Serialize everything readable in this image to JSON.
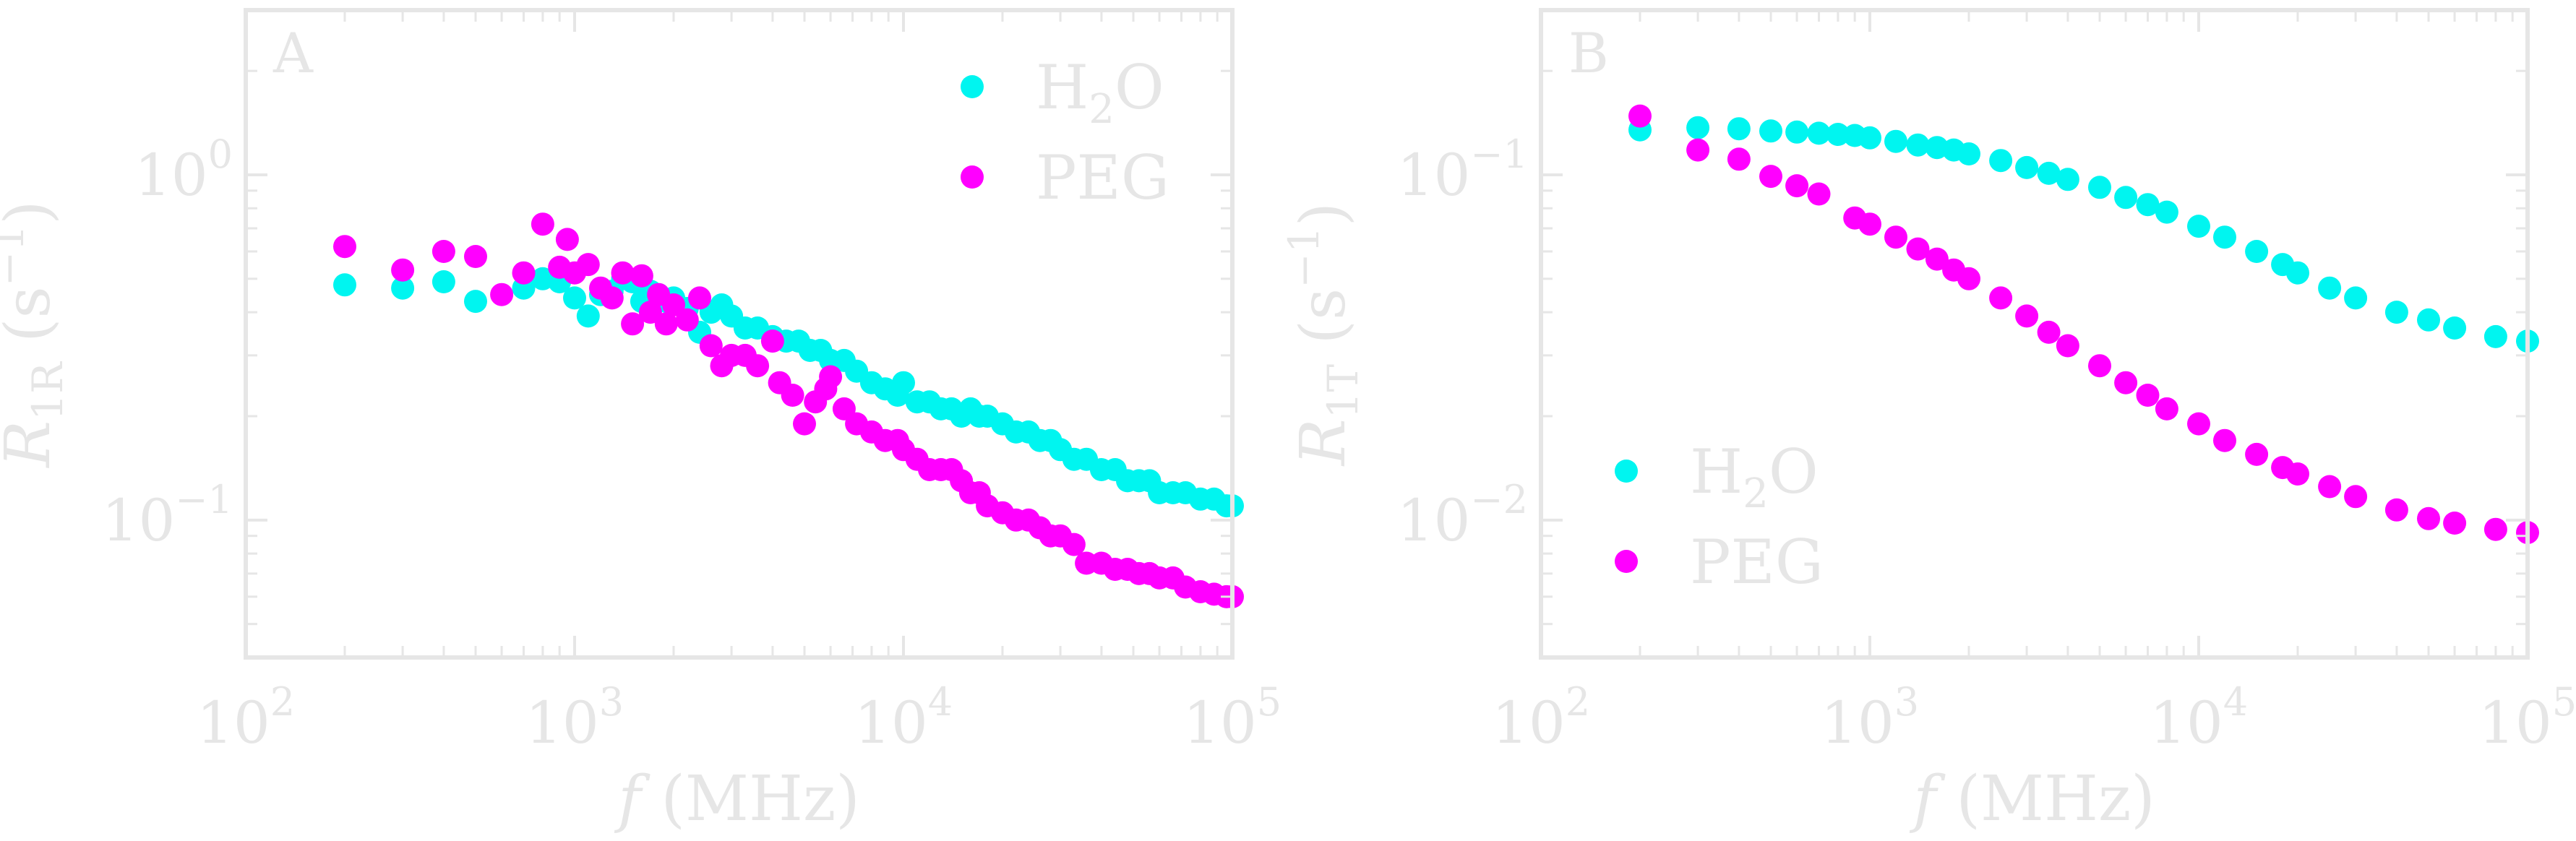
{
  "chart_data": [
    {
      "type": "scatter",
      "panel_label": "A",
      "xlabel": "f (MHz)",
      "ylabel": "R1R (s−1)",
      "xscale": "log",
      "yscale": "log",
      "xlim": [
        100,
        100000
      ],
      "ylim": [
        0.04,
        3.0
      ],
      "x_ticks": [
        100,
        1000,
        10000,
        100000
      ],
      "y_ticks": [
        0.1,
        1
      ],
      "x_tick_labels": [
        {
          "base": "10",
          "exp": "2"
        },
        {
          "base": "10",
          "exp": "3"
        },
        {
          "base": "10",
          "exp": "4"
        },
        {
          "base": "10",
          "exp": "5"
        }
      ],
      "y_tick_labels": [
        {
          "base": "10",
          "exp": "−1"
        },
        {
          "base": "10",
          "exp": "0"
        }
      ],
      "legend_placement": "top-right",
      "series": [
        {
          "name": "H2O",
          "color": "#00f5f0",
          "points": [
            [
              200,
              0.48
            ],
            [
              300,
              0.47
            ],
            [
              400,
              0.49
            ],
            [
              500,
              0.43
            ],
            [
              700,
              0.47
            ],
            [
              800,
              0.5
            ],
            [
              900,
              0.49
            ],
            [
              1000,
              0.44
            ],
            [
              1100,
              0.39
            ],
            [
              1200,
              0.45
            ],
            [
              1300,
              0.46
            ],
            [
              1400,
              0.5
            ],
            [
              1500,
              0.49
            ],
            [
              1600,
              0.43
            ],
            [
              1700,
              0.46
            ],
            [
              1800,
              0.45
            ],
            [
              1900,
              0.43
            ],
            [
              2000,
              0.44
            ],
            [
              2200,
              0.41
            ],
            [
              2400,
              0.35
            ],
            [
              2600,
              0.4
            ],
            [
              2800,
              0.42
            ],
            [
              3000,
              0.39
            ],
            [
              3300,
              0.36
            ],
            [
              3600,
              0.36
            ],
            [
              4000,
              0.34
            ],
            [
              4400,
              0.33
            ],
            [
              4800,
              0.33
            ],
            [
              5200,
              0.31
            ],
            [
              5600,
              0.31
            ],
            [
              6000,
              0.29
            ],
            [
              6600,
              0.29
            ],
            [
              7200,
              0.27
            ],
            [
              8000,
              0.25
            ],
            [
              8800,
              0.24
            ],
            [
              9600,
              0.23
            ],
            [
              10000,
              0.25
            ],
            [
              11000,
              0.22
            ],
            [
              12000,
              0.22
            ],
            [
              13000,
              0.21
            ],
            [
              14000,
              0.21
            ],
            [
              15000,
              0.2
            ],
            [
              16000,
              0.21
            ],
            [
              17000,
              0.2
            ],
            [
              18000,
              0.2
            ],
            [
              20000,
              0.19
            ],
            [
              22000,
              0.18
            ],
            [
              24000,
              0.18
            ],
            [
              26000,
              0.17
            ],
            [
              28000,
              0.17
            ],
            [
              30000,
              0.16
            ],
            [
              33000,
              0.15
            ],
            [
              36000,
              0.15
            ],
            [
              40000,
              0.14
            ],
            [
              44000,
              0.14
            ],
            [
              48000,
              0.13
            ],
            [
              52000,
              0.13
            ],
            [
              56000,
              0.13
            ],
            [
              60000,
              0.12
            ],
            [
              66000,
              0.12
            ],
            [
              72000,
              0.12
            ],
            [
              80000,
              0.115
            ],
            [
              88000,
              0.115
            ],
            [
              96000,
              0.11
            ],
            [
              100000,
              0.11
            ]
          ]
        },
        {
          "name": "PEG",
          "color": "#ff00ff",
          "points": [
            [
              200,
              0.62
            ],
            [
              300,
              0.53
            ],
            [
              400,
              0.6
            ],
            [
              500,
              0.58
            ],
            [
              600,
              0.45
            ],
            [
              700,
              0.52
            ],
            [
              800,
              0.72
            ],
            [
              900,
              0.54
            ],
            [
              950,
              0.65
            ],
            [
              1000,
              0.52
            ],
            [
              1100,
              0.55
            ],
            [
              1200,
              0.47
            ],
            [
              1300,
              0.44
            ],
            [
              1400,
              0.52
            ],
            [
              1500,
              0.37
            ],
            [
              1600,
              0.51
            ],
            [
              1700,
              0.4
            ],
            [
              1800,
              0.45
            ],
            [
              1900,
              0.37
            ],
            [
              2000,
              0.42
            ],
            [
              2200,
              0.38
            ],
            [
              2400,
              0.44
            ],
            [
              2600,
              0.32
            ],
            [
              2800,
              0.28
            ],
            [
              3000,
              0.3
            ],
            [
              3300,
              0.3
            ],
            [
              3600,
              0.28
            ],
            [
              4000,
              0.33
            ],
            [
              4200,
              0.25
            ],
            [
              4600,
              0.23
            ],
            [
              5000,
              0.19
            ],
            [
              5400,
              0.22
            ],
            [
              5800,
              0.24
            ],
            [
              6000,
              0.26
            ],
            [
              6600,
              0.21
            ],
            [
              7200,
              0.19
            ],
            [
              8000,
              0.18
            ],
            [
              8800,
              0.17
            ],
            [
              9600,
              0.17
            ],
            [
              10000,
              0.16
            ],
            [
              11000,
              0.15
            ],
            [
              12000,
              0.14
            ],
            [
              13000,
              0.14
            ],
            [
              14000,
              0.14
            ],
            [
              15000,
              0.13
            ],
            [
              16000,
              0.12
            ],
            [
              17000,
              0.12
            ],
            [
              18000,
              0.11
            ],
            [
              20000,
              0.105
            ],
            [
              22000,
              0.1
            ],
            [
              24000,
              0.1
            ],
            [
              26000,
              0.095
            ],
            [
              28000,
              0.09
            ],
            [
              30000,
              0.09
            ],
            [
              33000,
              0.085
            ],
            [
              36000,
              0.075
            ],
            [
              40000,
              0.075
            ],
            [
              44000,
              0.072
            ],
            [
              48000,
              0.072
            ],
            [
              52000,
              0.07
            ],
            [
              56000,
              0.07
            ],
            [
              60000,
              0.068
            ],
            [
              66000,
              0.068
            ],
            [
              72000,
              0.064
            ],
            [
              80000,
              0.062
            ],
            [
              88000,
              0.061
            ],
            [
              96000,
              0.06
            ],
            [
              100000,
              0.06
            ]
          ]
        }
      ]
    },
    {
      "type": "scatter",
      "panel_label": "B",
      "xlabel": "f (MHz)",
      "ylabel": "R1T (s−1)",
      "xscale": "log",
      "yscale": "log",
      "xlim": [
        100,
        100000
      ],
      "ylim": [
        0.004,
        0.3
      ],
      "x_ticks": [
        100,
        1000,
        10000,
        100000
      ],
      "y_ticks": [
        0.01,
        0.1
      ],
      "x_tick_labels": [
        {
          "base": "10",
          "exp": "2"
        },
        {
          "base": "10",
          "exp": "3"
        },
        {
          "base": "10",
          "exp": "4"
        },
        {
          "base": "10",
          "exp": "5"
        }
      ],
      "y_tick_labels": [
        {
          "base": "10",
          "exp": "−2"
        },
        {
          "base": "10",
          "exp": "−1"
        }
      ],
      "legend_placement": "bottom-left",
      "series": [
        {
          "name": "H2O",
          "color": "#00f5f0",
          "points": [
            [
              200,
              0.135
            ],
            [
              300,
              0.137
            ],
            [
              400,
              0.136
            ],
            [
              500,
              0.134
            ],
            [
              600,
              0.133
            ],
            [
              700,
              0.132
            ],
            [
              800,
              0.131
            ],
            [
              900,
              0.13
            ],
            [
              1000,
              0.128
            ],
            [
              1200,
              0.125
            ],
            [
              1400,
              0.122
            ],
            [
              1600,
              0.12
            ],
            [
              1800,
              0.118
            ],
            [
              2000,
              0.115
            ],
            [
              2500,
              0.11
            ],
            [
              3000,
              0.105
            ],
            [
              3500,
              0.101
            ],
            [
              4000,
              0.097
            ],
            [
              5000,
              0.092
            ],
            [
              6000,
              0.086
            ],
            [
              7000,
              0.082
            ],
            [
              8000,
              0.078
            ],
            [
              10000,
              0.071
            ],
            [
              12000,
              0.066
            ],
            [
              15000,
              0.06
            ],
            [
              18000,
              0.055
            ],
            [
              20000,
              0.052
            ],
            [
              25000,
              0.047
            ],
            [
              30000,
              0.044
            ],
            [
              40000,
              0.04
            ],
            [
              50000,
              0.038
            ],
            [
              60000,
              0.036
            ],
            [
              80000,
              0.034
            ],
            [
              100000,
              0.033
            ]
          ]
        },
        {
          "name": "PEG",
          "color": "#ff00ff",
          "points": [
            [
              200,
              0.148
            ],
            [
              300,
              0.118
            ],
            [
              400,
              0.111
            ],
            [
              500,
              0.099
            ],
            [
              600,
              0.093
            ],
            [
              700,
              0.088
            ],
            [
              900,
              0.075
            ],
            [
              1000,
              0.072
            ],
            [
              1200,
              0.066
            ],
            [
              1400,
              0.061
            ],
            [
              1600,
              0.057
            ],
            [
              1800,
              0.053
            ],
            [
              2000,
              0.05
            ],
            [
              2500,
              0.044
            ],
            [
              3000,
              0.039
            ],
            [
              3500,
              0.035
            ],
            [
              4000,
              0.032
            ],
            [
              5000,
              0.028
            ],
            [
              6000,
              0.025
            ],
            [
              7000,
              0.023
            ],
            [
              8000,
              0.021
            ],
            [
              10000,
              0.019
            ],
            [
              12000,
              0.017
            ],
            [
              15000,
              0.0155
            ],
            [
              18000,
              0.0142
            ],
            [
              20000,
              0.0136
            ],
            [
              25000,
              0.0125
            ],
            [
              30000,
              0.0117
            ],
            [
              40000,
              0.0107
            ],
            [
              50000,
              0.0101
            ],
            [
              60000,
              0.0098
            ],
            [
              80000,
              0.0094
            ],
            [
              100000,
              0.0092
            ]
          ]
        }
      ]
    }
  ]
}
